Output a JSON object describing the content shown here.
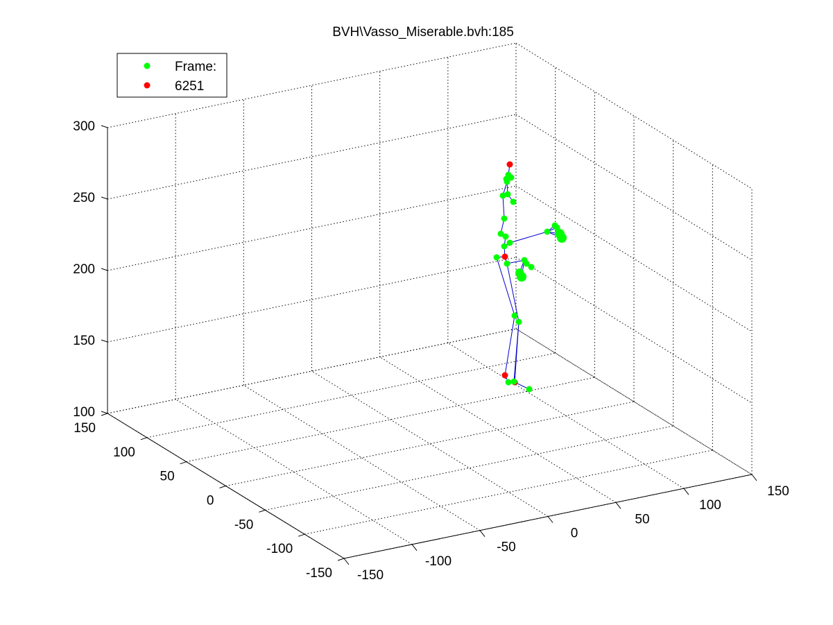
{
  "chart_data": {
    "type": "scatter",
    "title": "BVH\\Vasso_Miserable.bvh:185",
    "legend": {
      "position": "top-left",
      "entries": [
        {
          "label": "Frame:",
          "color": "#00ff00"
        },
        {
          "label": "6251",
          "color": "#ff0000"
        }
      ]
    },
    "z_axis": {
      "ticks": [
        "300",
        "250",
        "200",
        "150",
        "100"
      ]
    },
    "y_axis": {
      "ticks": [
        "150",
        "100",
        "50",
        "0",
        "-50",
        "-100",
        "-150"
      ]
    },
    "x_axis": {
      "ticks": [
        "-150",
        "-100",
        "-50",
        "0",
        "50",
        "100",
        "150"
      ]
    },
    "xlim": [
      -150,
      150
    ],
    "ylim": [
      -150,
      150
    ],
    "zlim": [
      100,
      300
    ],
    "grid": true,
    "colors": {
      "joint": "#00ff00",
      "end_site": "#ff0000",
      "bone": "#0000cc"
    },
    "joint_count": 38
  }
}
